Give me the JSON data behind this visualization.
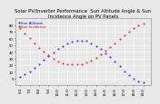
{
  "title": "Solar PV/Inverter Performance  Sun Altitude Angle & Sun Incidence Angle on PV Panels",
  "legend": [
    "Sun Altitude",
    "Sun Incidence"
  ],
  "legend_colors": [
    "#0000cc",
    "#cc0000"
  ],
  "background_color": "#e8e8e8",
  "grid_color": "#ffffff",
  "ylim": [
    -10,
    90
  ],
  "yticks": [
    0,
    10,
    20,
    30,
    40,
    50,
    60,
    70,
    80
  ],
  "blue_x": [
    6.0,
    6.5,
    7.0,
    7.5,
    8.0,
    8.5,
    9.0,
    9.5,
    10.0,
    10.5,
    11.0,
    11.5,
    12.0,
    12.5,
    13.0,
    13.5,
    14.0,
    14.5,
    15.0,
    15.5,
    16.0,
    16.5,
    17.0,
    17.5,
    18.0,
    18.5,
    19.0
  ],
  "blue_y": [
    2,
    6,
    11,
    16,
    22,
    28,
    34,
    39,
    44,
    48,
    52,
    55,
    57,
    57,
    56,
    53,
    49,
    44,
    38,
    32,
    25,
    18,
    11,
    5,
    0,
    -4,
    -6
  ],
  "red_x": [
    6.0,
    6.5,
    7.0,
    7.5,
    8.0,
    8.5,
    9.0,
    9.5,
    10.0,
    10.5,
    11.0,
    11.5,
    12.0,
    12.5,
    13.0,
    13.5,
    14.0,
    14.5,
    15.0,
    15.5,
    16.0,
    16.5,
    17.0,
    17.5,
    18.0,
    18.5,
    19.0
  ],
  "red_y": [
    75,
    68,
    60,
    52,
    46,
    40,
    35,
    30,
    26,
    23,
    22,
    21,
    21,
    22,
    24,
    27,
    31,
    36,
    41,
    47,
    53,
    59,
    65,
    70,
    75,
    79,
    82
  ],
  "xlim": [
    5.5,
    19.8
  ],
  "title_fontsize": 3.8,
  "tick_fontsize": 2.8,
  "legend_fontsize": 2.8,
  "marker_size": 0.8,
  "xtick_labels": [
    "6:0",
    "7:0",
    "8:0",
    "9:0",
    "10:0",
    "11:0",
    "12:0",
    "13:0",
    "14:0",
    "15:0",
    "16:0",
    "17:0",
    "18:0",
    "19:0"
  ],
  "xtick_positions": [
    6,
    7,
    8,
    9,
    10,
    11,
    12,
    13,
    14,
    15,
    16,
    17,
    18,
    19
  ]
}
